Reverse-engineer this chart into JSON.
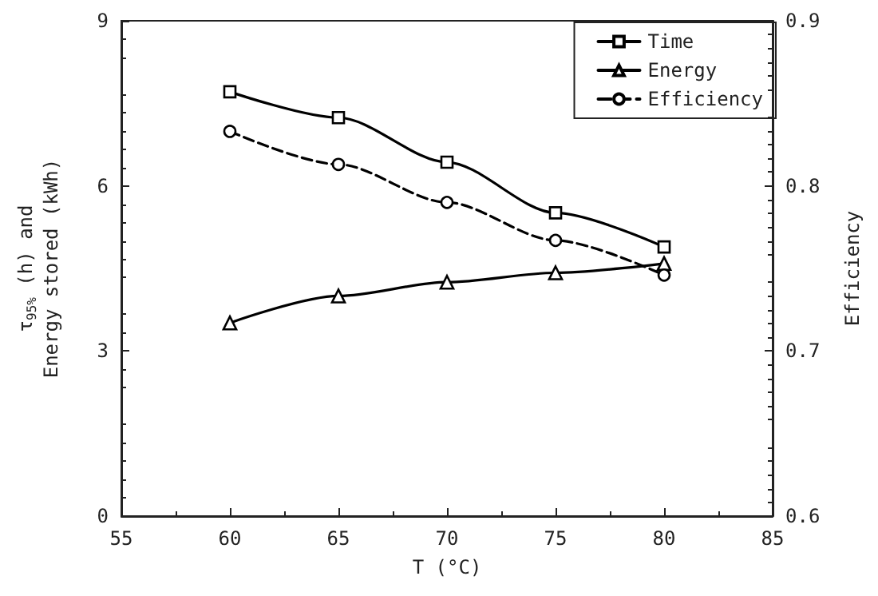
{
  "chart_data": {
    "type": "line",
    "xlabel": "T (°C)",
    "ylabel": "τ$_{95%}$ (h) and\nEnergy stored (kWh)",
    "y2label": "Efficiency",
    "x": [
      60,
      65,
      70,
      75,
      80
    ],
    "series": [
      {
        "name": "Time",
        "color": "#000000",
        "marker": "square",
        "line_style": "solid",
        "values": [
          7.71,
          7.24,
          6.43,
          5.51,
          4.89
        ]
      },
      {
        "name": "Energy",
        "color": "#000000",
        "marker": "triangle",
        "line_style": "solid",
        "values": [
          3.51,
          4.0,
          4.25,
          4.42,
          4.59
        ]
      },
      {
        "name": "Efficiency",
        "color": "#000000",
        "marker": "circle",
        "line_style": "dashed",
        "axis": "y2",
        "values": [
          0.833,
          0.813,
          0.79,
          0.767,
          0.746
        ]
      }
    ],
    "xlim": [
      55,
      85
    ],
    "xticks": [
      55,
      60,
      65,
      70,
      75,
      80,
      85
    ],
    "ylim": [
      0,
      9
    ],
    "yticks": [
      0,
      3,
      6,
      9
    ],
    "y2lim": [
      0.6,
      0.9
    ],
    "y2ticks": [
      0.6,
      0.7,
      0.8,
      0.9
    ],
    "grid": false,
    "legend": "top right"
  }
}
